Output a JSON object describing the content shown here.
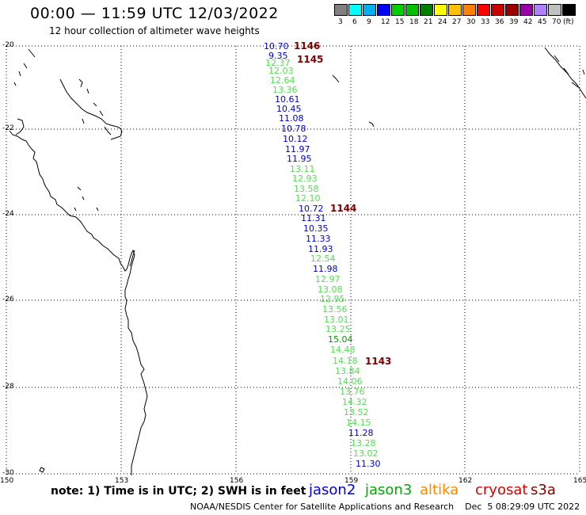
{
  "header": {
    "title": "00:00 — 11:59 UTC 12/03/2022",
    "subtitle": "12 hour collection of altimeter wave heights"
  },
  "scale": {
    "colors": [
      "#808080",
      "#00ffff",
      "#00b0f0",
      "#0000ff",
      "#00d000",
      "#00c000",
      "#008000",
      "#ffff00",
      "#ffc000",
      "#ff8000",
      "#ff0000",
      "#cc0000",
      "#990000",
      "#9900aa",
      "#b080ff",
      "#c0c0c0",
      "#000000"
    ],
    "labels": [
      "3",
      "6",
      "9",
      "12",
      "15",
      "18",
      "21",
      "24",
      "27",
      "30",
      "33",
      "36",
      "39",
      "42",
      "45",
      "70",
      "(ft)"
    ]
  },
  "axes": {
    "lat_labels": [
      "-20",
      "-22",
      "-24",
      "-26",
      "-28",
      "-30"
    ],
    "lon_labels": [
      "150",
      "153",
      "156",
      "159",
      "162",
      "165"
    ]
  },
  "passes": [
    {
      "label": "1146"
    },
    {
      "label": "1145"
    },
    {
      "label": "1144"
    },
    {
      "label": "1143"
    }
  ],
  "wave_heights": [
    {
      "v": "10.70",
      "c": "#0000cc"
    },
    {
      "v": "9.35",
      "c": "#0000cc"
    },
    {
      "v": "12.37",
      "c": "#55dd55"
    },
    {
      "v": "12.03",
      "c": "#55dd55"
    },
    {
      "v": "12.64",
      "c": "#55dd55"
    },
    {
      "v": "13.36",
      "c": "#55dd55"
    },
    {
      "v": "10.61",
      "c": "#0000cc"
    },
    {
      "v": "10.45",
      "c": "#0000cc"
    },
    {
      "v": "11.08",
      "c": "#0000cc"
    },
    {
      "v": "10.78",
      "c": "#0000cc"
    },
    {
      "v": "10.12",
      "c": "#0000cc"
    },
    {
      "v": "11.97",
      "c": "#0000cc"
    },
    {
      "v": "11.95",
      "c": "#0000cc"
    },
    {
      "v": "13.11",
      "c": "#55dd55"
    },
    {
      "v": "12.93",
      "c": "#55dd55"
    },
    {
      "v": "13.58",
      "c": "#55dd55"
    },
    {
      "v": "12.10",
      "c": "#55dd55"
    },
    {
      "v": "10.72",
      "c": "#0000cc"
    },
    {
      "v": "11.31",
      "c": "#0000cc"
    },
    {
      "v": "10.35",
      "c": "#0000cc"
    },
    {
      "v": "11.33",
      "c": "#0000cc"
    },
    {
      "v": "11.93",
      "c": "#0000cc"
    },
    {
      "v": "12.54",
      "c": "#55dd55"
    },
    {
      "v": "11.98",
      "c": "#0000cc"
    },
    {
      "v": "12.97",
      "c": "#55dd55"
    },
    {
      "v": "13.08",
      "c": "#55dd55"
    },
    {
      "v": "12.95",
      "c": "#55dd55"
    },
    {
      "v": "13.56",
      "c": "#55dd55"
    },
    {
      "v": "13.01",
      "c": "#55dd55"
    },
    {
      "v": "13.25",
      "c": "#55dd55"
    },
    {
      "v": "15.04",
      "c": "#009900"
    },
    {
      "v": "14.48",
      "c": "#55dd55"
    },
    {
      "v": "14.18",
      "c": "#55dd55"
    },
    {
      "v": "13.84",
      "c": "#55dd55"
    },
    {
      "v": "14.06",
      "c": "#55dd55"
    },
    {
      "v": "13.76",
      "c": "#55dd55"
    },
    {
      "v": "14.32",
      "c": "#55dd55"
    },
    {
      "v": "13.52",
      "c": "#55dd55"
    },
    {
      "v": "14.15",
      "c": "#55dd55"
    },
    {
      "v": "11.28",
      "c": "#0000cc"
    },
    {
      "v": "13.28",
      "c": "#55dd55"
    },
    {
      "v": "13.02",
      "c": "#55dd55"
    },
    {
      "v": "11.30",
      "c": "#0000cc"
    }
  ],
  "footer": {
    "note": "note: 1) Time is in UTC; 2) SWH is in feet",
    "satellites": [
      {
        "name": "jason2",
        "color": "#0000dd"
      },
      {
        "name": "jason3",
        "color": "#00aa00"
      },
      {
        "name": "altika",
        "color": "#ff8800"
      },
      {
        "name": "cryosat",
        "color": "#dd0000"
      },
      {
        "name": "s3a",
        "color": "#880000"
      }
    ],
    "credit": "NOAA/NESDIS Center for Satellite Applications and Research    Dec  5 08:29:09 UTC 2022"
  }
}
